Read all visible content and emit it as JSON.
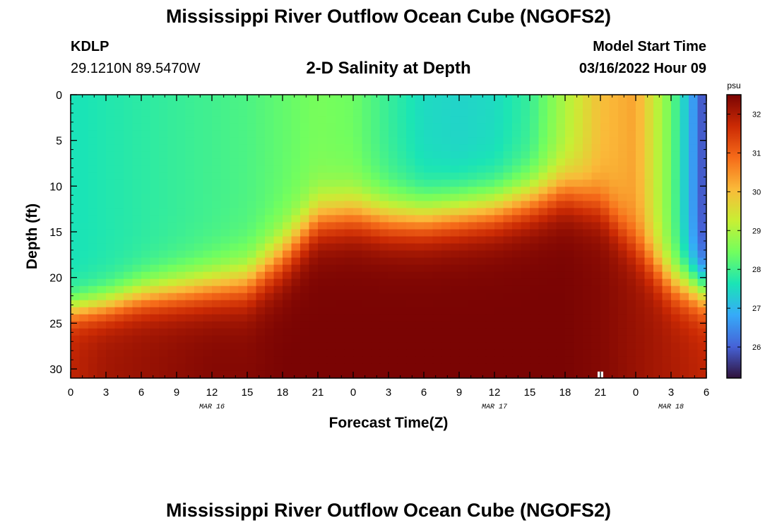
{
  "header": {
    "title": "Mississippi River Outflow Ocean Cube (NGOFS2)",
    "station_id": "KDLP",
    "coordinates": "29.1210N  89.5470W",
    "subtitle": "2-D Salinity at Depth",
    "model_start_label": "Model Start Time",
    "model_start_value": "03/16/2022 Hour 09"
  },
  "footer": {
    "title": "Mississippi River Outflow Ocean Cube (NGOFS2)"
  },
  "chart_data": {
    "type": "heatmap",
    "title": "2-D Salinity at Depth",
    "xlabel": "Forecast Time(Z)",
    "ylabel": "Depth (ft)",
    "x_tick_labels": [
      "0",
      "3",
      "6",
      "9",
      "12",
      "15",
      "18",
      "21",
      "0",
      "3",
      "6",
      "9",
      "12",
      "15",
      "18",
      "21",
      "0",
      "3",
      "6"
    ],
    "x_range_hours": [
      0,
      54
    ],
    "date_labels": [
      {
        "label": "MAR 16",
        "hour": 12
      },
      {
        "label": "MAR 17",
        "hour": 36
      },
      {
        "label": "MAR 18",
        "hour": 51
      }
    ],
    "y_tick_labels": [
      "0",
      "5",
      "10",
      "15",
      "20",
      "25",
      "30"
    ],
    "y_ticks": [
      0,
      5,
      10,
      15,
      20,
      25,
      30
    ],
    "y_range": [
      0,
      31
    ],
    "y_inverted": true,
    "colorbar": {
      "label": "psu",
      "min": 25.2,
      "max": 32.5,
      "tick_labels": [
        "26",
        "27",
        "28",
        "29",
        "30",
        "31",
        "32"
      ],
      "ticks": [
        26,
        27,
        28,
        29,
        30,
        31,
        32
      ],
      "colors": [
        "#30123b",
        "#4662d7",
        "#36aaf9",
        "#1ae4b6",
        "#72fe5e",
        "#c8ef34",
        "#faba39",
        "#f66b19",
        "#cb2a04",
        "#7a0403"
      ]
    },
    "field_description": {
      "columns_hours": [
        0,
        3,
        6,
        9,
        12,
        15,
        18,
        21,
        24,
        27,
        30,
        33,
        36,
        39,
        42,
        45,
        48,
        51,
        54
      ],
      "surface_salinity_psu": [
        27.6,
        27.7,
        27.8,
        27.9,
        28.0,
        28.1,
        28.3,
        28.5,
        28.4,
        27.9,
        27.5,
        27.4,
        27.5,
        27.9,
        29.0,
        30.0,
        30.3,
        28.4,
        25.6
      ],
      "halocline_center_depth_ft": [
        23.5,
        23.0,
        22.0,
        21.5,
        21.0,
        20.5,
        17.5,
        13.5,
        13.0,
        13.5,
        13.5,
        13.0,
        12.5,
        11.5,
        10.5,
        12.0,
        16.5,
        20.5,
        21.5
      ],
      "halocline_width_ft": [
        4.0,
        4.5,
        5.0,
        5.5,
        6.0,
        6.5,
        7.0,
        6.5,
        6.5,
        6.5,
        6.5,
        6.5,
        6.5,
        6.5,
        6.5,
        6.5,
        6.5,
        6.0,
        6.0
      ],
      "bottom_salinity_psu": [
        31.8,
        32.1,
        32.2,
        32.3,
        32.4,
        32.4,
        32.5,
        32.5,
        32.5,
        32.5,
        32.5,
        32.5,
        32.5,
        32.5,
        32.5,
        32.4,
        32.2,
        32.0,
        31.8
      ],
      "marker": {
        "hour": 45,
        "depth_ft": 30.6
      }
    }
  }
}
